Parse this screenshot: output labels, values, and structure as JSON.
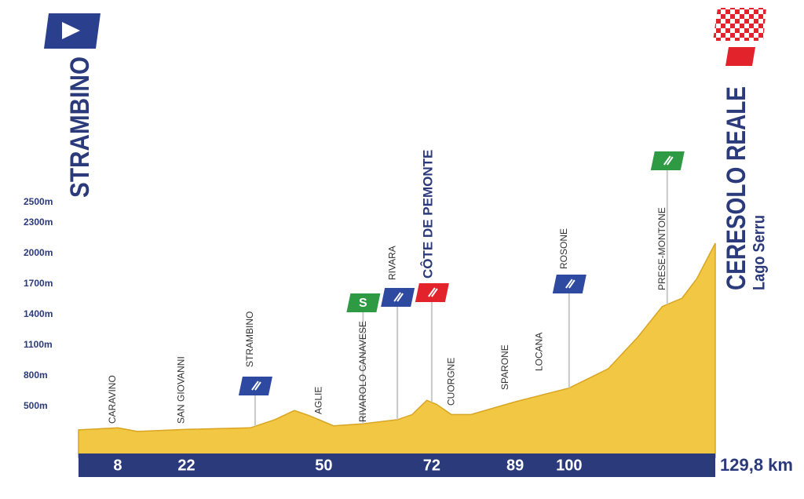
{
  "chart_data": {
    "type": "area",
    "start": "STRAMBINO",
    "finish": "CERESOLO REALE",
    "finish_subtitle": "Lago Serru",
    "x": [
      0,
      8,
      12,
      22,
      35,
      40,
      44,
      47,
      52,
      58,
      65,
      68,
      71,
      73,
      76,
      80,
      89,
      100,
      108,
      114,
      119,
      123,
      126,
      129.8
    ],
    "values": [
      270,
      290,
      255,
      275,
      290,
      370,
      460,
      410,
      310,
      330,
      370,
      420,
      560,
      520,
      420,
      420,
      545,
      680,
      870,
      1180,
      1480,
      1560,
      1750,
      2100
    ],
    "color": "#f2c744",
    "xlim": [
      0,
      129.8
    ],
    "ylim": [
      0,
      2800
    ],
    "yticks": [
      {
        "value": 500,
        "label": "500m"
      },
      {
        "value": 800,
        "label": "800m"
      },
      {
        "value": 1100,
        "label": "1100m"
      },
      {
        "value": 1400,
        "label": "1400m"
      },
      {
        "value": 1700,
        "label": "1700m"
      },
      {
        "value": 2000,
        "label": "2000m"
      },
      {
        "value": 2300,
        "label": "2300m"
      },
      {
        "value": 2500,
        "label": "2500m"
      }
    ],
    "xticks": [
      8,
      22,
      50,
      72,
      89,
      100,
      {
        "value": 129.8,
        "label": "129,8 km"
      }
    ],
    "places": [
      {
        "name": "CARAVINO",
        "km": 8
      },
      {
        "name": "SAN GIOVANNI",
        "km": 22
      },
      {
        "name": "STRAMBINO",
        "km": 36
      },
      {
        "name": "AGLIE",
        "km": 50
      },
      {
        "name": "RIVAROLO CANAVESE",
        "km": 59
      },
      {
        "name": "RIVARA",
        "km": 65
      },
      {
        "name": "CÔTE DE PEMONTE",
        "km": 72
      },
      {
        "name": "CUORGNE",
        "km": 77
      },
      {
        "name": "SPARONE",
        "km": 88
      },
      {
        "name": "LOCANA",
        "km": 95
      },
      {
        "name": "ROSONE",
        "km": 100
      },
      {
        "name": "PRESE-MONTONE",
        "km": 120
      }
    ],
    "flags": [
      {
        "km": 36,
        "color": "#2d4aa0"
      },
      {
        "km": 58,
        "color": "#2e9a44",
        "label": "S"
      },
      {
        "km": 65,
        "color": "#2d4aa0"
      },
      {
        "km": 72,
        "color": "#e3232b"
      },
      {
        "km": 100,
        "color": "#2d4aa0"
      },
      {
        "km": 120,
        "color": "#2e9a44"
      }
    ]
  }
}
